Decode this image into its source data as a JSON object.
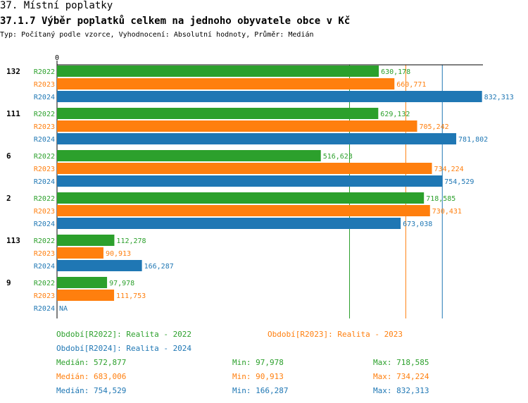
{
  "header": {
    "title": "37. Místní poplatky",
    "subtitle": "37.1.7 Výběr poplatků celkem na jednoho obyvatele obce v  Kč",
    "type_line": "Typ: Počítaný podle vzorce, Vyhodnocení: Absolutní hodnoty, Průměr: Medián"
  },
  "chart_data": {
    "type": "bar",
    "orientation": "horizontal",
    "axis_zero_label": "0",
    "categories": [
      "132",
      "111",
      "6",
      "2",
      "113",
      "9"
    ],
    "series": [
      {
        "name": "R2022",
        "color": "#2ca02c",
        "values": [
          630178,
          629132,
          516623,
          718585,
          112278,
          97978
        ],
        "labels": [
          "630,178",
          "629,132",
          "516,623",
          "718,585",
          "112,278",
          "97,978"
        ]
      },
      {
        "name": "R2023",
        "color": "#ff7f0e",
        "values": [
          660771,
          705242,
          734224,
          730431,
          90913,
          111753
        ],
        "labels": [
          "660,771",
          "705,242",
          "734,224",
          "730,431",
          "90,913",
          "111,753"
        ]
      },
      {
        "name": "R2024",
        "color": "#1f77b4",
        "values": [
          832313,
          781802,
          754529,
          673038,
          166287,
          null
        ],
        "labels": [
          "832,313",
          "781,802",
          "754,529",
          "673,038",
          "166,287",
          "NA"
        ]
      }
    ],
    "median_lines": [
      {
        "series": "R2022",
        "value": 572877,
        "color": "#2ca02c"
      },
      {
        "series": "R2023",
        "value": 683006,
        "color": "#ff7f0e"
      },
      {
        "series": "R2024",
        "value": 754529,
        "color": "#1f77b4"
      }
    ],
    "xlim": [
      0,
      900000
    ]
  },
  "legend": {
    "periods": [
      {
        "text": "Období[R2022]: Realita - 2022",
        "color": "#2ca02c"
      },
      {
        "text": "Období[R2023]: Realita - 2023",
        "color": "#ff7f0e"
      },
      {
        "text": "Období[R2024]: Realita - 2024",
        "color": "#1f77b4"
      }
    ],
    "stats": [
      {
        "median": "Medián: 572,877",
        "min": "Min: 97,978",
        "max": "Max: 718,585",
        "color": "#2ca02c"
      },
      {
        "median": "Medián: 683,006",
        "min": "Min: 90,913",
        "max": "Max: 734,224",
        "color": "#ff7f0e"
      },
      {
        "median": "Medián: 754,529",
        "min": "Min: 166,287",
        "max": "Max: 832,313",
        "color": "#1f77b4"
      }
    ]
  }
}
